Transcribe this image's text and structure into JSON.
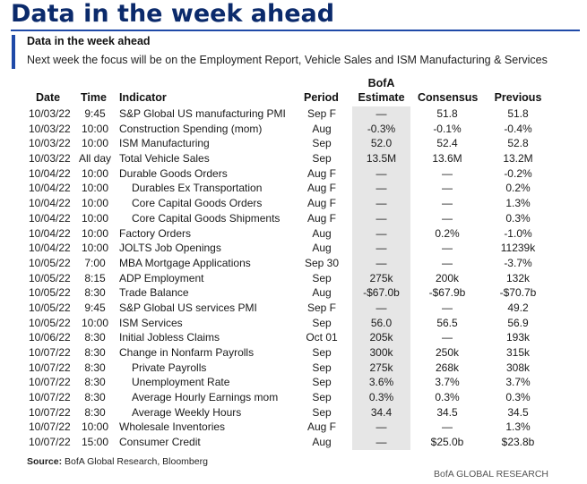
{
  "title": "Data in the week ahead",
  "subtitle": "Data in the week ahead",
  "description": "Next week the focus will be on the Employment Report, Vehicle Sales and ISM Manufacturing & Services",
  "headers": {
    "date": "Date",
    "time": "Time",
    "indicator": "Indicator",
    "period": "Period",
    "bofa_line1": "BofA",
    "bofa_line2": "Estimate",
    "consensus": "Consensus",
    "previous": "Previous"
  },
  "rows": [
    {
      "date": "10/03/22",
      "time": "9:45",
      "indicator": "S&P Global US manufacturing PMI",
      "period": "Sep F",
      "bofa": "—",
      "consensus": "51.8",
      "previous": "51.8",
      "indent": false
    },
    {
      "date": "10/03/22",
      "time": "10:00",
      "indicator": "Construction Spending (mom)",
      "period": "Aug",
      "bofa": "-0.3%",
      "consensus": "-0.1%",
      "previous": "-0.4%",
      "indent": false
    },
    {
      "date": "10/03/22",
      "time": "10:00",
      "indicator": "ISM Manufacturing",
      "period": "Sep",
      "bofa": "52.0",
      "consensus": "52.4",
      "previous": "52.8",
      "indent": false
    },
    {
      "date": "10/03/22",
      "time": "All day",
      "indicator": "Total Vehicle Sales",
      "period": "Sep",
      "bofa": "13.5M",
      "consensus": "13.6M",
      "previous": "13.2M",
      "indent": false
    },
    {
      "date": "10/04/22",
      "time": "10:00",
      "indicator": "Durable Goods Orders",
      "period": "Aug F",
      "bofa": "—",
      "consensus": "—",
      "previous": "-0.2%",
      "indent": false
    },
    {
      "date": "10/04/22",
      "time": "10:00",
      "indicator": "Durables Ex Transportation",
      "period": "Aug F",
      "bofa": "—",
      "consensus": "—",
      "previous": "0.2%",
      "indent": true
    },
    {
      "date": "10/04/22",
      "time": "10:00",
      "indicator": "Core Capital Goods Orders",
      "period": "Aug F",
      "bofa": "—",
      "consensus": "—",
      "previous": "1.3%",
      "indent": true
    },
    {
      "date": "10/04/22",
      "time": "10:00",
      "indicator": "Core Capital Goods Shipments",
      "period": "Aug F",
      "bofa": "—",
      "consensus": "—",
      "previous": "0.3%",
      "indent": true
    },
    {
      "date": "10/04/22",
      "time": "10:00",
      "indicator": "Factory Orders",
      "period": "Aug",
      "bofa": "—",
      "consensus": "0.2%",
      "previous": "-1.0%",
      "indent": false
    },
    {
      "date": "10/04/22",
      "time": "10:00",
      "indicator": "JOLTS Job Openings",
      "period": "Aug",
      "bofa": "—",
      "consensus": "—",
      "previous": "11239k",
      "indent": false
    },
    {
      "date": "10/05/22",
      "time": "7:00",
      "indicator": "MBA Mortgage Applications",
      "period": "Sep 30",
      "bofa": "—",
      "consensus": "—",
      "previous": "-3.7%",
      "indent": false
    },
    {
      "date": "10/05/22",
      "time": "8:15",
      "indicator": "ADP Employment",
      "period": "Sep",
      "bofa": "275k",
      "consensus": "200k",
      "previous": "132k",
      "indent": false
    },
    {
      "date": "10/05/22",
      "time": "8:30",
      "indicator": "Trade Balance",
      "period": "Aug",
      "bofa": "-$67.0b",
      "consensus": "-$67.9b",
      "previous": "-$70.7b",
      "indent": false
    },
    {
      "date": "10/05/22",
      "time": "9:45",
      "indicator": "S&P Global US services PMI",
      "period": "Sep F",
      "bofa": "—",
      "consensus": "—",
      "previous": "49.2",
      "indent": false
    },
    {
      "date": "10/05/22",
      "time": "10:00",
      "indicator": "ISM Services",
      "period": "Sep",
      "bofa": "56.0",
      "consensus": "56.5",
      "previous": "56.9",
      "indent": false
    },
    {
      "date": "10/06/22",
      "time": "8:30",
      "indicator": "Initial Jobless Claims",
      "period": "Oct 01",
      "bofa": "205k",
      "consensus": "—",
      "previous": "193k",
      "indent": false
    },
    {
      "date": "10/07/22",
      "time": "8:30",
      "indicator": "Change in Nonfarm Payrolls",
      "period": "Sep",
      "bofa": "300k",
      "consensus": "250k",
      "previous": "315k",
      "indent": false
    },
    {
      "date": "10/07/22",
      "time": "8:30",
      "indicator": "Private Payrolls",
      "period": "Sep",
      "bofa": "275k",
      "consensus": "268k",
      "previous": "308k",
      "indent": true
    },
    {
      "date": "10/07/22",
      "time": "8:30",
      "indicator": "Unemployment Rate",
      "period": "Sep",
      "bofa": "3.6%",
      "consensus": "3.7%",
      "previous": "3.7%",
      "indent": true
    },
    {
      "date": "10/07/22",
      "time": "8:30",
      "indicator": "Average Hourly Earnings mom",
      "period": "Sep",
      "bofa": "0.3%",
      "consensus": "0.3%",
      "previous": "0.3%",
      "indent": true
    },
    {
      "date": "10/07/22",
      "time": "8:30",
      "indicator": "Average Weekly Hours",
      "period": "Sep",
      "bofa": "34.4",
      "consensus": "34.5",
      "previous": "34.5",
      "indent": true
    },
    {
      "date": "10/07/22",
      "time": "10:00",
      "indicator": "Wholesale Inventories",
      "period": "Aug F",
      "bofa": "—",
      "consensus": "—",
      "previous": "1.3%",
      "indent": false
    },
    {
      "date": "10/07/22",
      "time": "15:00",
      "indicator": "Consumer Credit",
      "period": "Aug",
      "bofa": "—",
      "consensus": "$25.0b",
      "previous": "$23.8b",
      "indent": false
    }
  ],
  "source_label": "Source:",
  "source_text": "BofA Global Research, Bloomberg",
  "brand": "BofA GLOBAL RESEARCH",
  "colors": {
    "title": "#0b2a6b",
    "accent": "#1f4aa8",
    "estimate_shade": "#e6e6e6"
  }
}
